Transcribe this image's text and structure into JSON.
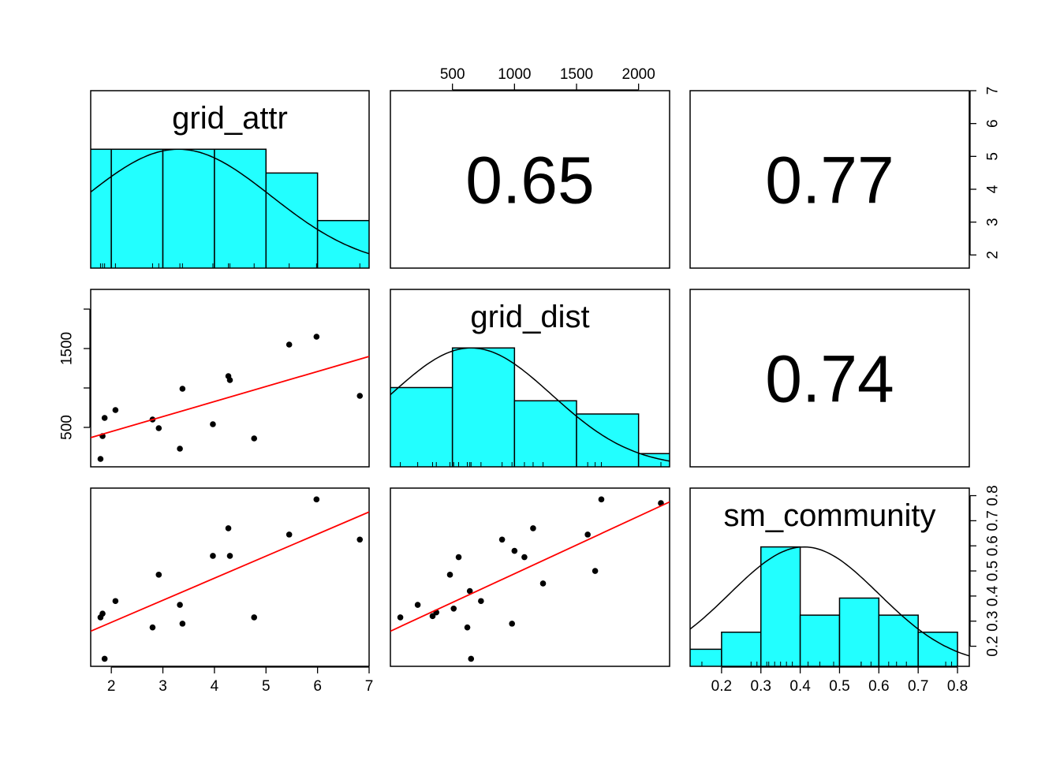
{
  "chart_data": {
    "type": "scatter-matrix",
    "colors": {
      "histogram_fill": "#22ffff",
      "fit_line": "#ff0000",
      "points": "#000000"
    },
    "variables": [
      {
        "name": "grid_attr",
        "range": [
          1.6,
          7.0
        ],
        "ticks": [
          2,
          3,
          4,
          5,
          6,
          7
        ]
      },
      {
        "name": "grid_dist",
        "range": [
          0,
          2250
        ],
        "ticks": [
          500,
          1000,
          1500,
          2000
        ]
      },
      {
        "name": "sm_community",
        "range": [
          0.12,
          0.83
        ],
        "ticks": [
          0.2,
          0.3,
          0.4,
          0.5,
          0.6,
          0.7,
          0.8
        ]
      }
    ],
    "correlations": [
      {
        "row": 0,
        "col": 1,
        "value": "0.65"
      },
      {
        "row": 0,
        "col": 2,
        "value": "0.77"
      },
      {
        "row": 1,
        "col": 2,
        "value": "0.74"
      }
    ],
    "histograms": [
      {
        "variable": "grid_attr",
        "breaks": [
          1,
          2,
          3,
          4,
          5,
          6,
          7
        ],
        "counts": [
          5,
          5,
          5,
          5,
          4,
          2
        ],
        "curve": {
          "mean": 3.3,
          "sd": 1.8
        }
      },
      {
        "variable": "grid_dist",
        "breaks": [
          0,
          500,
          1000,
          1500,
          2000,
          2500
        ],
        "counts": [
          6,
          9,
          5,
          4,
          1
        ],
        "curve": {
          "mean": 650,
          "sd": 650
        }
      },
      {
        "variable": "sm_community",
        "breaks": [
          0.1,
          0.2,
          0.3,
          0.4,
          0.5,
          0.6,
          0.7,
          0.8
        ],
        "counts": [
          1,
          2,
          7,
          3,
          4,
          3,
          2
        ],
        "curve": {
          "mean": 0.41,
          "sd": 0.19
        }
      }
    ],
    "scatter": [
      {
        "x": "grid_attr",
        "y": "grid_dist",
        "points": [
          [
            1.79,
            100
          ],
          [
            1.83,
            390
          ],
          [
            1.87,
            620
          ],
          [
            2.08,
            720
          ],
          [
            2.8,
            600
          ],
          [
            2.92,
            490
          ],
          [
            3.33,
            230
          ],
          [
            3.38,
            990
          ],
          [
            3.97,
            540
          ],
          [
            4.27,
            1150
          ],
          [
            4.3,
            1100
          ],
          [
            4.77,
            360
          ],
          [
            5.45,
            1550
          ],
          [
            5.98,
            1650
          ],
          [
            6.82,
            900
          ]
        ],
        "fit": [
          [
            1.6,
            370
          ],
          [
            7.0,
            1400
          ]
        ]
      },
      {
        "x": "grid_attr",
        "y": "sm_community",
        "points": [
          [
            1.79,
            0.315
          ],
          [
            1.83,
            0.33
          ],
          [
            1.87,
            0.15
          ],
          [
            2.08,
            0.38
          ],
          [
            2.8,
            0.275
          ],
          [
            2.92,
            0.485
          ],
          [
            3.33,
            0.365
          ],
          [
            3.38,
            0.29
          ],
          [
            3.97,
            0.56
          ],
          [
            4.27,
            0.67
          ],
          [
            4.3,
            0.56
          ],
          [
            4.77,
            0.315
          ],
          [
            5.45,
            0.645
          ],
          [
            5.98,
            0.785
          ],
          [
            6.82,
            0.625
          ]
        ],
        "fit": [
          [
            1.6,
            0.26
          ],
          [
            7.0,
            0.735
          ]
        ]
      },
      {
        "x": "grid_dist",
        "y": "sm_community",
        "points": [
          [
            80,
            0.315
          ],
          [
            220,
            0.365
          ],
          [
            340,
            0.32
          ],
          [
            370,
            0.335
          ],
          [
            480,
            0.485
          ],
          [
            510,
            0.35
          ],
          [
            550,
            0.555
          ],
          [
            620,
            0.275
          ],
          [
            640,
            0.42
          ],
          [
            650,
            0.15
          ],
          [
            730,
            0.38
          ],
          [
            900,
            0.625
          ],
          [
            980,
            0.29
          ],
          [
            1000,
            0.58
          ],
          [
            1080,
            0.555
          ],
          [
            1150,
            0.67
          ],
          [
            1230,
            0.45
          ],
          [
            1590,
            0.645
          ],
          [
            1650,
            0.5
          ],
          [
            1700,
            0.785
          ],
          [
            2180,
            0.77
          ]
        ],
        "fit": [
          [
            0,
            0.26
          ],
          [
            2250,
            0.775
          ]
        ]
      }
    ]
  }
}
